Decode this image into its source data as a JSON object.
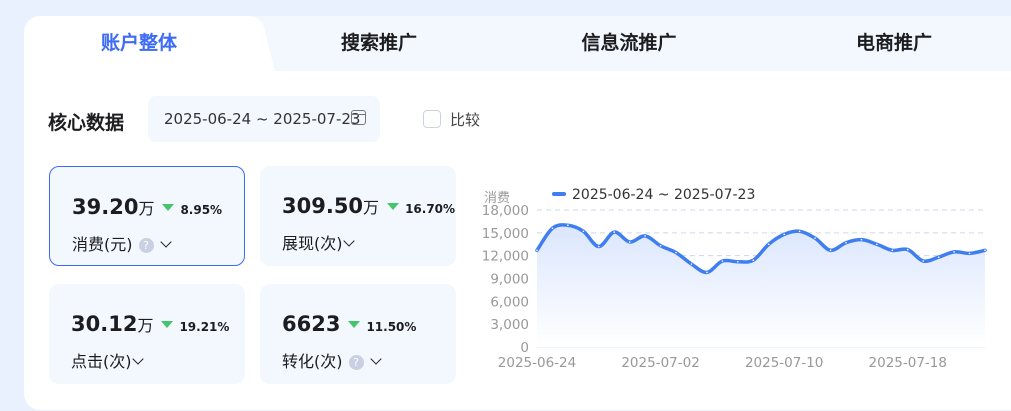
{
  "tabs": [
    {
      "label": "账户整体"
    },
    {
      "label": "搜索推广"
    },
    {
      "label": "信息流推广"
    },
    {
      "label": "电商推广"
    }
  ],
  "section_title": "核心数据",
  "date_range": "2025-06-24 ~ 2025-07-23",
  "compare_label": "比较",
  "metrics": [
    {
      "value": "39.20",
      "unit": "万",
      "change": "8.95%",
      "label": "消费(元)",
      "help": "?"
    },
    {
      "value": "309.50",
      "unit": "万",
      "change": "16.70%",
      "label": "展现(次)"
    },
    {
      "value": "30.12",
      "unit": "万",
      "change": "19.21%",
      "label": "点击(次)"
    },
    {
      "value": "6623",
      "unit": "",
      "change": "11.50%",
      "label": "转化(次)",
      "help": "?"
    }
  ],
  "colors": {
    "accent": "#3d6bf5",
    "line": "#3f7ef0",
    "down": "#45c46b"
  },
  "chart_data": {
    "type": "area",
    "ylabel": "消费",
    "legend": "2025-06-24 ~ 2025-07-23",
    "ylim": [
      0,
      18000
    ],
    "yticks": [
      "0",
      "3,000",
      "6,000",
      "9,000",
      "12,000",
      "15,000",
      "18,000"
    ],
    "xticks": [
      "2025-06-24",
      "2025-07-02",
      "2025-07-10",
      "2025-07-18"
    ],
    "x_start": "2025-06-24",
    "values": [
      12700,
      15600,
      16000,
      15200,
      13200,
      15100,
      13800,
      14600,
      13300,
      12400,
      10900,
      9800,
      11300,
      11200,
      11400,
      13500,
      14800,
      15200,
      14300,
      12700,
      13700,
      14100,
      13500,
      12700,
      12800,
      11300,
      11800,
      12500,
      12300,
      12700
    ]
  }
}
